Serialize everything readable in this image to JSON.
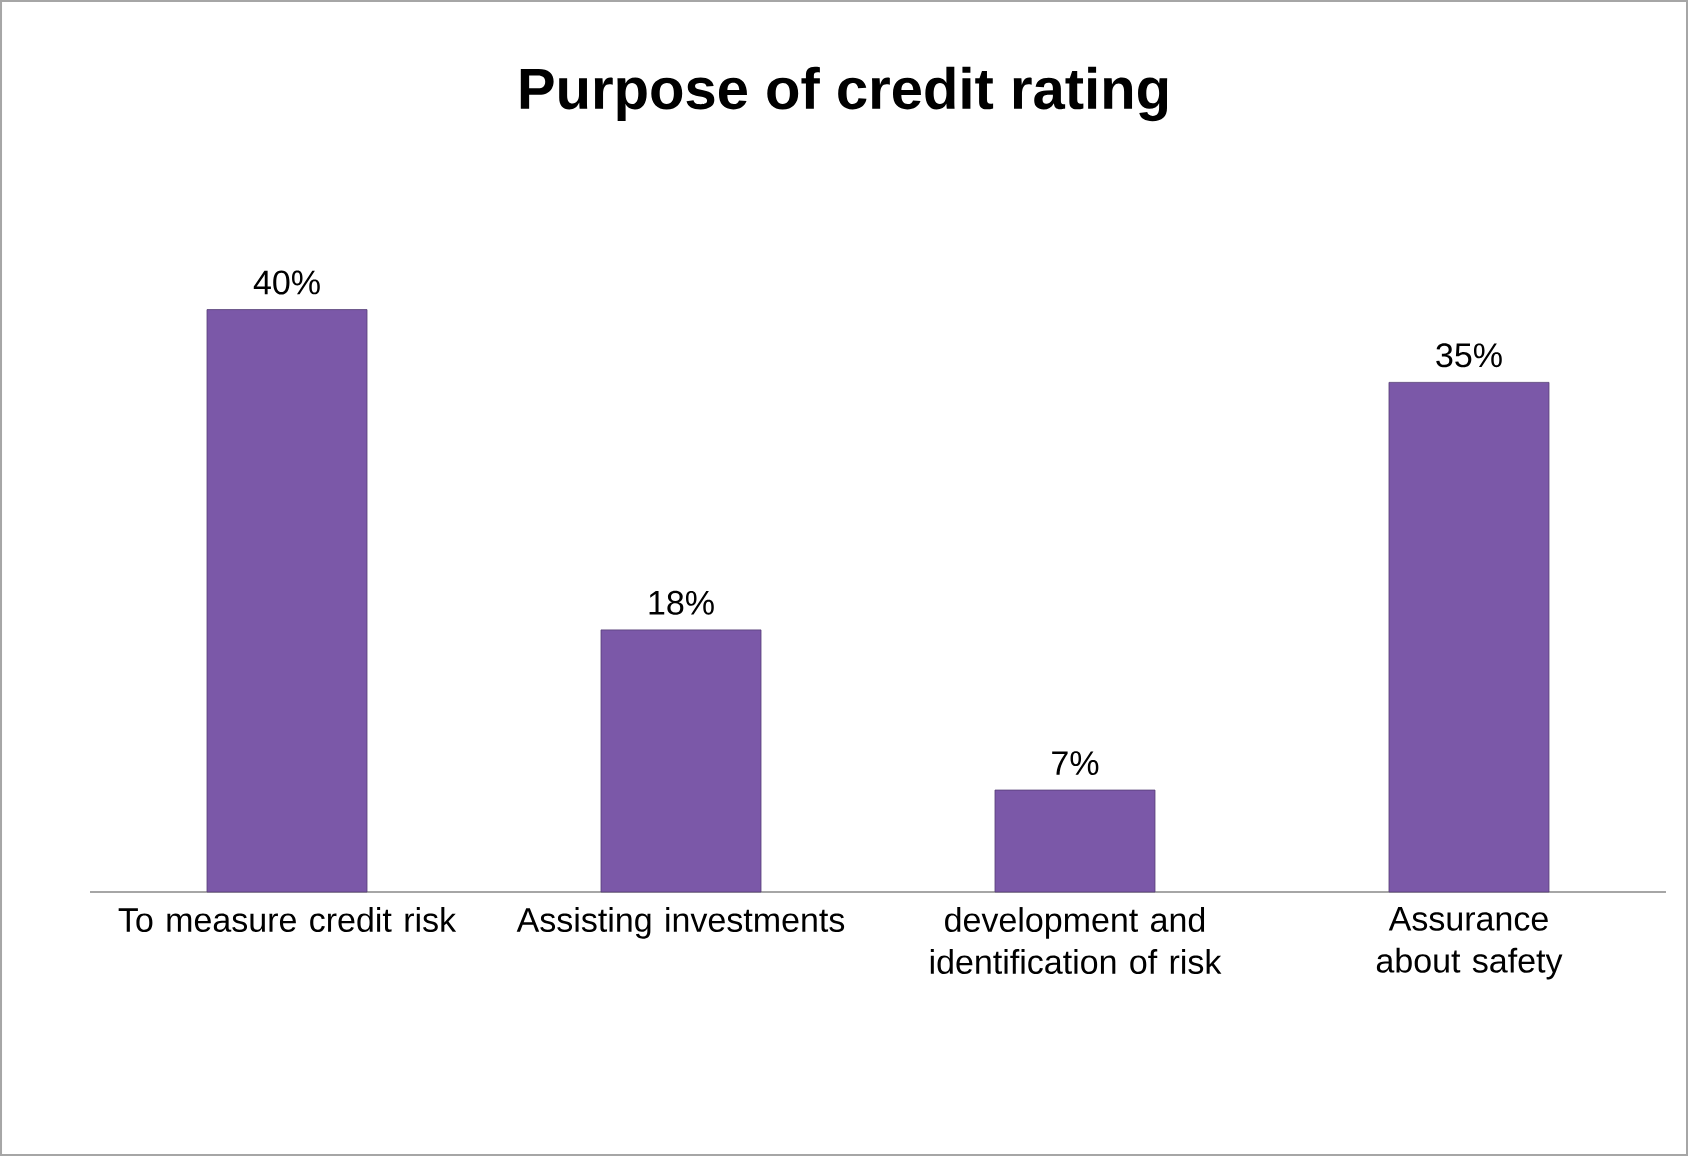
{
  "chart_data": {
    "type": "bar",
    "title": "Purpose of credit rating",
    "categories": [
      "To measure credit risk",
      "Assisting investments",
      "development and identification of risk",
      "Assurance about safety"
    ],
    "values": [
      40,
      18,
      7,
      35
    ],
    "value_labels": [
      "40%",
      "18%",
      "7%",
      "35%"
    ],
    "color": "#7b58a8"
  }
}
